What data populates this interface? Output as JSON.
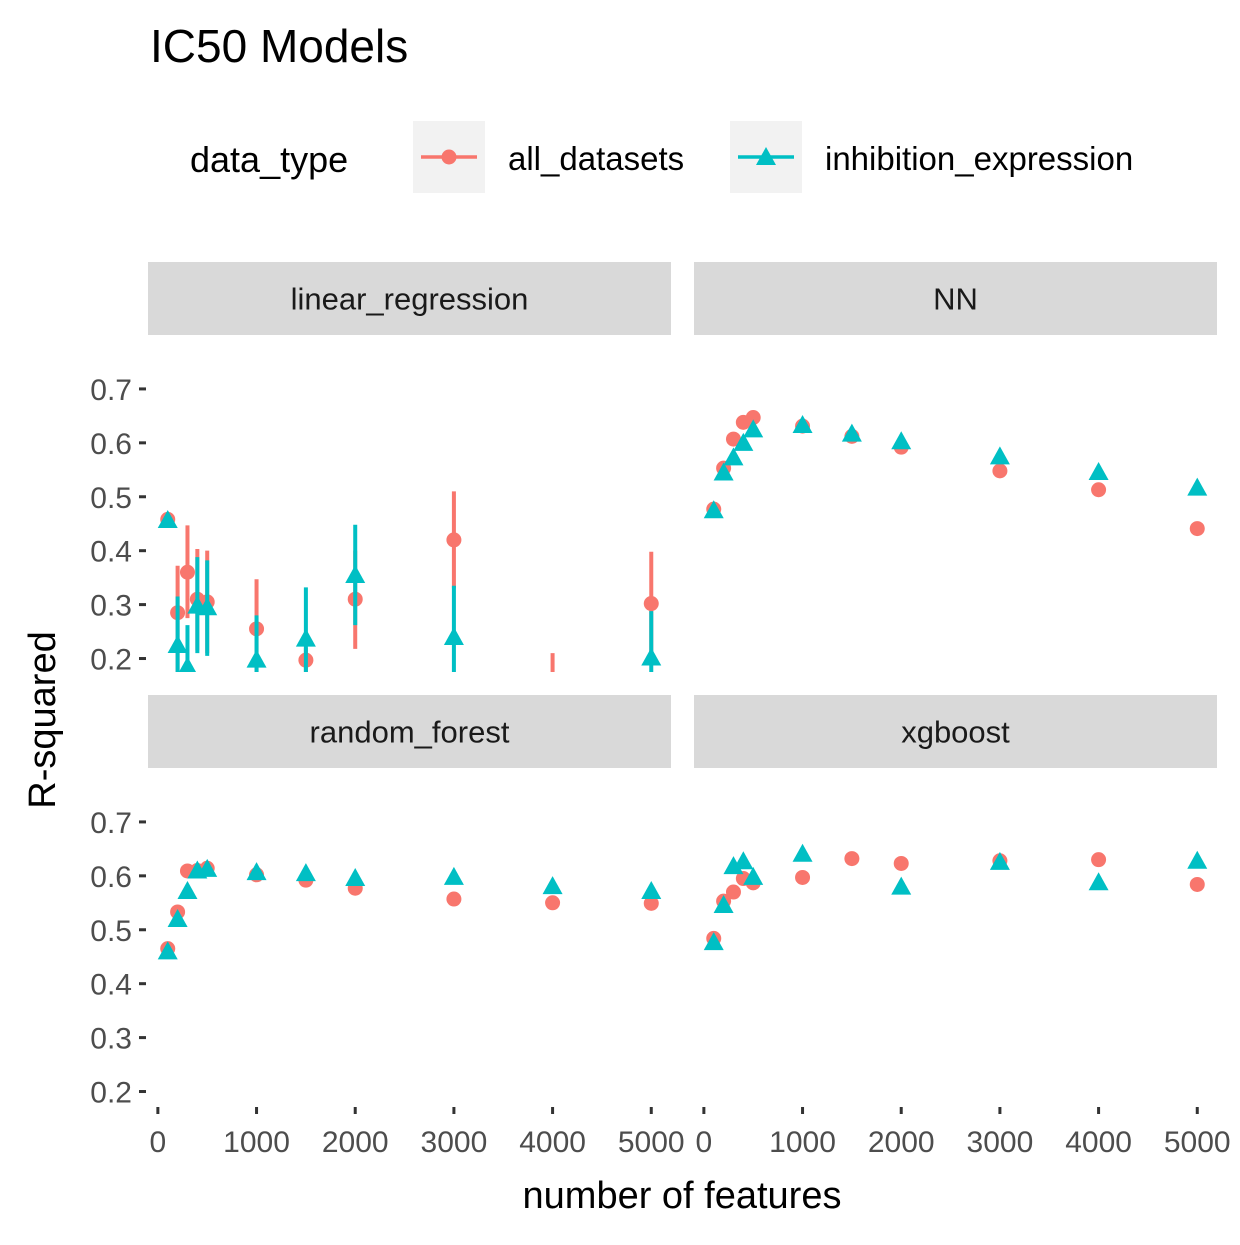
{
  "chart_data": {
    "type": "scatter",
    "title": "IC50 Models",
    "xlabel": "number of features",
    "ylabel": "R-squared",
    "legend": {
      "title": "data_type",
      "position": "top",
      "items": [
        "all_datasets",
        "inhibition_expression"
      ]
    },
    "colors": {
      "all_datasets": "#F8766D",
      "inhibition_expression": "#00BFC4"
    },
    "markers": {
      "all_datasets": "circle",
      "inhibition_expression": "triangle"
    },
    "xlim": [
      -100,
      5200
    ],
    "ylim": [
      0.175,
      0.8
    ],
    "x_ticks": [
      0,
      1000,
      2000,
      3000,
      4000,
      5000
    ],
    "x_tick_labels": [
      "0",
      "1000",
      "2000",
      "3000",
      "4000",
      "5000"
    ],
    "y_ticks": [
      0.2,
      0.3,
      0.4,
      0.5,
      0.6,
      0.7
    ],
    "y_tick_labels": [
      "0.2",
      "0.3",
      "0.4",
      "0.5",
      "0.6",
      "0.7"
    ],
    "panels": [
      {
        "name": "linear_regression",
        "series": [
          {
            "name": "all_datasets",
            "x": [
              100,
              200,
              300,
              400,
              500,
              1000,
              1500,
              2000,
              3000,
              4000,
              5000
            ],
            "y": [
              0.458,
              0.285,
              0.36,
              0.31,
              0.305,
              0.255,
              0.197,
              0.31,
              0.42,
              null,
              0.302
            ],
            "ylow": [
              0.45,
              0.175,
              0.275,
              0.215,
              0.21,
              0.175,
              0.175,
              0.218,
              0.33,
              0.175,
              0.2
            ],
            "yhigh": [
              0.465,
              0.372,
              0.447,
              0.403,
              0.4,
              0.347,
              0.22,
              0.4,
              0.51,
              0.21,
              0.398
            ]
          },
          {
            "name": "inhibition_expression",
            "x": [
              100,
              200,
              300,
              400,
              500,
              1000,
              1500,
              2000,
              3000,
              5000
            ],
            "y": [
              0.457,
              0.225,
              0.185,
              0.298,
              0.295,
              0.198,
              0.237,
              0.355,
              0.24,
              0.202
            ],
            "ylow": [
              0.45,
              0.175,
              0.175,
              0.21,
              0.205,
              0.175,
              0.175,
              0.262,
              0.175,
              0.175
            ],
            "yhigh": [
              0.465,
              0.315,
              0.262,
              0.388,
              0.382,
              0.28,
              0.332,
              0.448,
              0.335,
              0.288
            ]
          }
        ]
      },
      {
        "name": "NN",
        "series": [
          {
            "name": "all_datasets",
            "x": [
              100,
              200,
              300,
              400,
              500,
              1000,
              1500,
              2000,
              3000,
              4000,
              5000
            ],
            "y": [
              0.477,
              0.553,
              0.607,
              0.638,
              0.647,
              0.631,
              0.612,
              0.592,
              0.548,
              0.513,
              0.441
            ]
          },
          {
            "name": "inhibition_expression",
            "x": [
              100,
              200,
              300,
              400,
              500,
              1000,
              1500,
              2000,
              3000,
              4000,
              5000
            ],
            "y": [
              0.475,
              0.545,
              0.573,
              0.6,
              0.625,
              0.633,
              0.617,
              0.603,
              0.575,
              0.546,
              0.517
            ]
          }
        ]
      },
      {
        "name": "random_forest",
        "series": [
          {
            "name": "all_datasets",
            "x": [
              100,
              200,
              300,
              400,
              500,
              1000,
              1500,
              2000,
              3000,
              4000,
              5000
            ],
            "y": [
              0.465,
              0.533,
              0.609,
              0.61,
              0.614,
              0.602,
              0.592,
              0.577,
              0.557,
              0.55,
              0.549
            ]
          },
          {
            "name": "inhibition_expression",
            "x": [
              100,
              200,
              300,
              400,
              500,
              1000,
              1500,
              2000,
              3000,
              4000,
              5000
            ],
            "y": [
              0.46,
              0.52,
              0.572,
              0.61,
              0.613,
              0.607,
              0.605,
              0.596,
              0.598,
              0.581,
              0.572
            ]
          }
        ]
      },
      {
        "name": "xgboost",
        "series": [
          {
            "name": "all_datasets",
            "x": [
              100,
              200,
              300,
              400,
              500,
              1000,
              1500,
              2000,
              3000,
              4000,
              5000
            ],
            "y": [
              0.484,
              0.553,
              0.57,
              0.595,
              0.587,
              0.597,
              0.632,
              0.623,
              0.628,
              0.63,
              0.584
            ]
          },
          {
            "name": "inhibition_expression",
            "x": [
              100,
              200,
              300,
              400,
              500,
              1000,
              1500,
              2000,
              3000,
              4000,
              5000
            ],
            "y": [
              0.477,
              0.546,
              0.618,
              0.627,
              0.598,
              0.641,
              null,
              0.58,
              0.626,
              0.588,
              0.628
            ]
          }
        ]
      }
    ]
  }
}
